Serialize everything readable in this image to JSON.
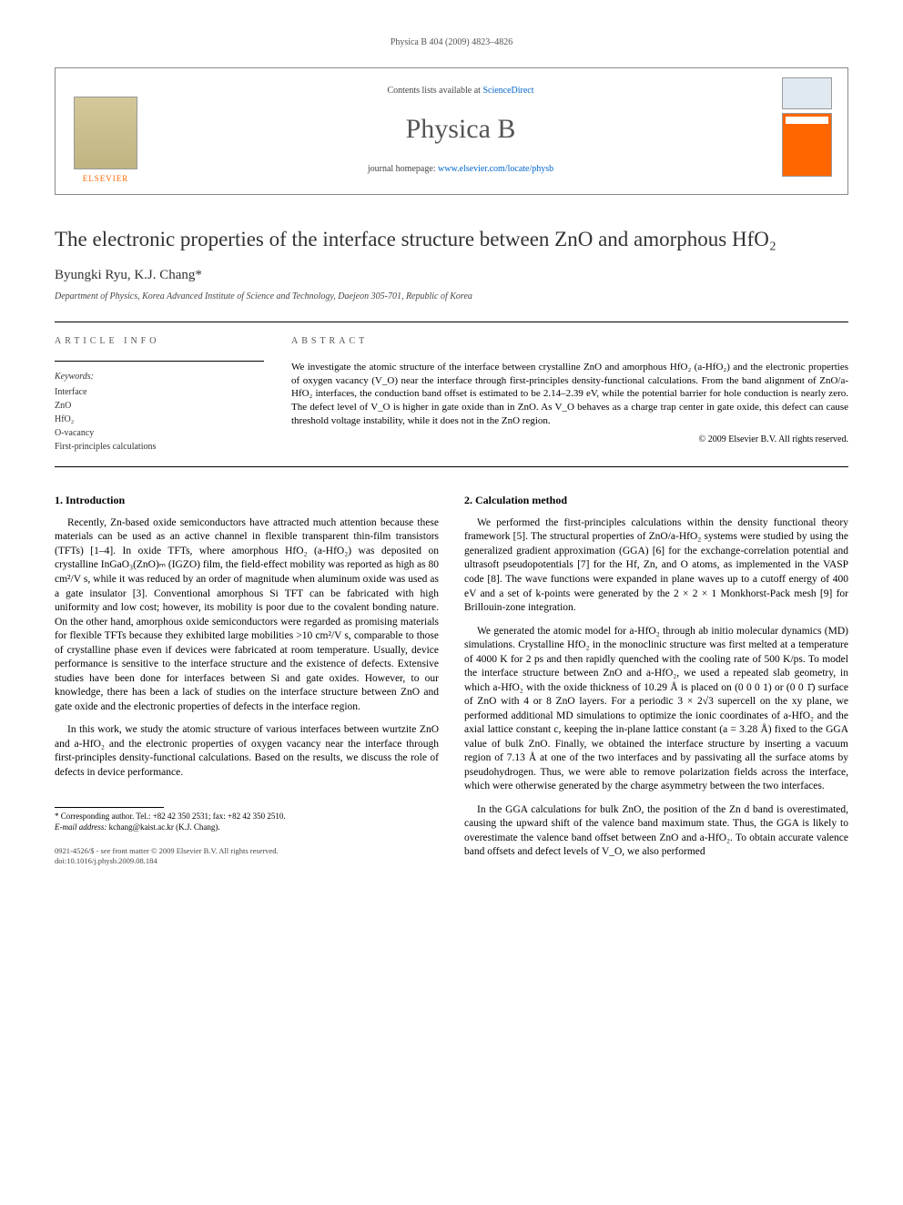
{
  "running_header": "Physica B 404 (2009) 4823–4826",
  "masthead": {
    "contents_prefix": "Contents lists available at ",
    "contents_link": "ScienceDirect",
    "journal_name": "Physica B",
    "homepage_prefix": "journal homepage: ",
    "homepage_link": "www.elsevier.com/locate/physb",
    "publisher": "ELSEVIER"
  },
  "title": "The electronic properties of the interface structure between ZnO and amorphous HfO₂",
  "authors": "Byungki Ryu, K.J. Chang*",
  "affiliation": "Department of Physics, Korea Advanced Institute of Science and Technology, Daejeon 305-701, Republic of Korea",
  "info_heading": "ARTICLE INFO",
  "abstract_heading": "ABSTRACT",
  "keywords_label": "Keywords:",
  "keywords": [
    "Interface",
    "ZnO",
    "HfO₂",
    "O-vacancy",
    "First-principles calculations"
  ],
  "abstract": "We investigate the atomic structure of the interface between crystalline ZnO and amorphous HfO₂ (a-HfO₂) and the electronic properties of oxygen vacancy (V_O) near the interface through first-principles density-functional calculations. From the band alignment of ZnO/a-HfO₂ interfaces, the conduction band offset is estimated to be 2.14–2.39 eV, while the potential barrier for hole conduction is nearly zero. The defect level of V_O is higher in gate oxide than in ZnO. As V_O behaves as a charge trap center in gate oxide, this defect can cause threshold voltage instability, while it does not in the ZnO region.",
  "copyright": "© 2009 Elsevier B.V. All rights reserved.",
  "section1_heading": "1.  Introduction",
  "section1_p1": "Recently, Zn-based oxide semiconductors have attracted much attention because these materials can be used as an active channel in flexible transparent thin-film transistors (TFTs) [1–4]. In oxide TFTs, where amorphous HfO₂ (a-HfO₂) was deposited on crystalline InGaO₃(ZnO)ₘ (IGZO) film, the field-effect mobility was reported as high as 80 cm²/V s, while it was reduced by an order of magnitude when aluminum oxide was used as a gate insulator [3]. Conventional amorphous Si TFT can be fabricated with high uniformity and low cost; however, its mobility is poor due to the covalent bonding nature. On the other hand, amorphous oxide semiconductors were regarded as promising materials for flexible TFTs because they exhibited large mobilities >10 cm²/V s, comparable to those of crystalline phase even if devices were fabricated at room temperature. Usually, device performance is sensitive to the interface structure and the existence of defects. Extensive studies have been done for interfaces between Si and gate oxides. However, to our knowledge, there has been a lack of studies on the interface structure between ZnO and gate oxide and the electronic properties of defects in the interface region.",
  "section1_p2": "In this work, we study the atomic structure of various interfaces between wurtzite ZnO and a-HfO₂ and the electronic properties of oxygen vacancy near the interface through first-principles density-functional calculations. Based on the results, we discuss the role of defects in device performance.",
  "section2_heading": "2.  Calculation method",
  "section2_p1": "We performed the first-principles calculations within the density functional theory framework [5]. The structural properties of ZnO/a-HfO₂ systems were studied by using the generalized gradient approximation (GGA) [6] for the exchange-correlation potential and ultrasoft pseudopotentials [7] for the Hf, Zn, and O atoms, as implemented in the VASP code [8]. The wave functions were expanded in plane waves up to a cutoff energy of 400 eV and a set of k-points were generated by the 2 × 2 × 1 Monkhorst-Pack mesh [9] for Brillouin-zone integration.",
  "section2_p2": "We generated the atomic model for a-HfO₂ through ab initio molecular dynamics (MD) simulations. Crystalline HfO₂ in the monoclinic structure was first melted at a temperature of 4000 K for 2 ps and then rapidly quenched with the cooling rate of 500 K/ps. To model the interface structure between ZnO and a-HfO₂, we used a repeated slab geometry, in which a-HfO₂ with the oxide thickness of 10.29 Å is placed on (0 0 0 1) or (0 0 1̄) surface of ZnO with 4 or 8 ZnO layers. For a periodic 3 × 2√3 supercell on the xy plane, we performed additional MD simulations to optimize the ionic coordinates of a-HfO₂ and the axial lattice constant c, keeping the in-plane lattice constant (a = 3.28 Å) fixed to the GGA value of bulk ZnO. Finally, we obtained the interface structure by inserting a vacuum region of 7.13 Å at one of the two interfaces and by passivating all the surface atoms by pseudohydrogen. Thus, we were able to remove polarization fields across the interface, which were otherwise generated by the charge asymmetry between the two interfaces.",
  "section2_p3": "In the GGA calculations for bulk ZnO, the position of the Zn d band is overestimated, causing the upward shift of the valence band maximum state. Thus, the GGA is likely to overestimate the valence band offset between ZnO and a-HfO₂. To obtain accurate valence band offsets and defect levels of V_O, we also performed",
  "footnote_corr": "* Corresponding author. Tel.: +82 42 350 2531; fax: +82 42 350 2510.",
  "footnote_email_label": "E-mail address:",
  "footnote_email": "kchang@kaist.ac.kr (K.J. Chang).",
  "doi_line1": "0921-4526/$ - see front matter © 2009 Elsevier B.V. All rights reserved.",
  "doi_line2": "doi:10.1016/j.physb.2009.08.184"
}
